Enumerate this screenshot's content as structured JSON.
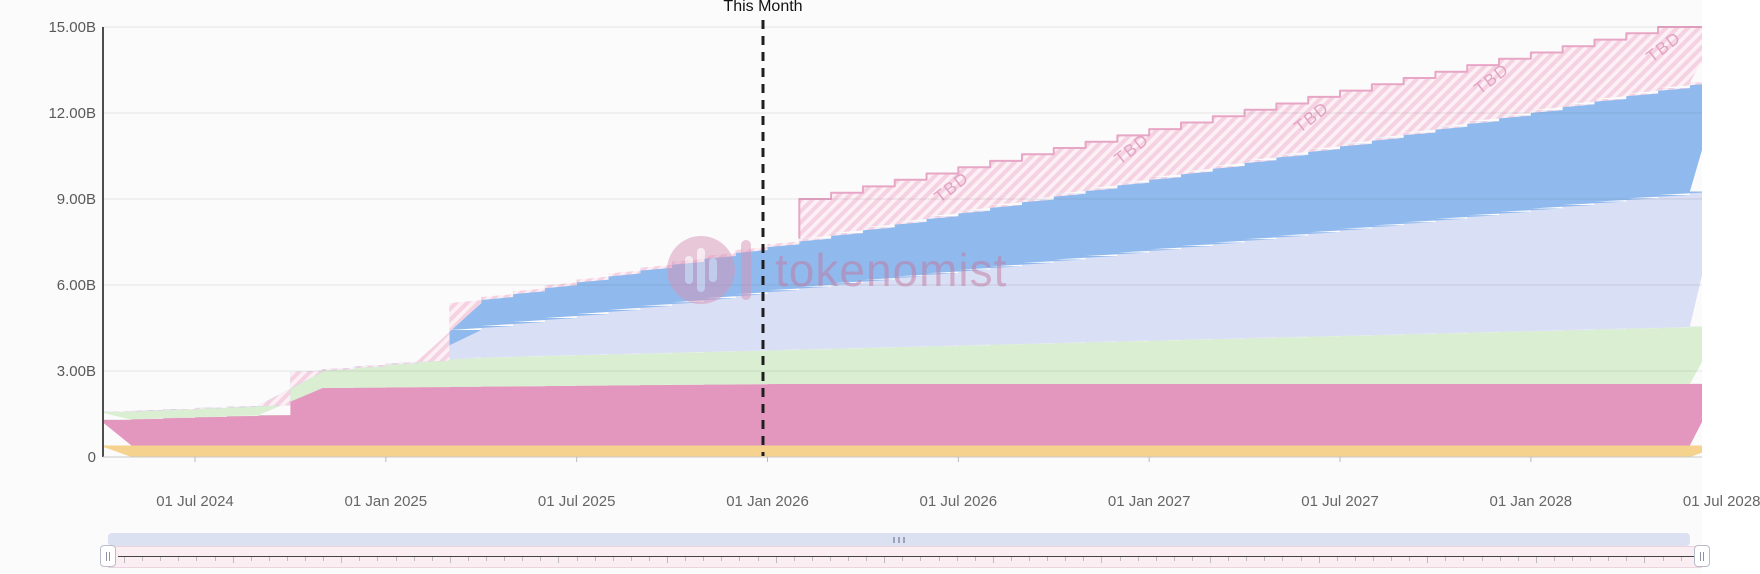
{
  "header": {
    "this_month_label": "This Month"
  },
  "watermark": {
    "text": "tokenomist"
  },
  "colors": {
    "band_orange": "#f5d28e",
    "band_magenta": "#e397be",
    "band_green": "#daefd1",
    "band_lavender": "#d9dff5",
    "band_blue": "#90baee",
    "tbd_fill": "#fdf0f5",
    "tbd_stripe": "#f5d2e2",
    "tbd_stroke": "#e7a6c5",
    "tbd_text": "#e2a3c4",
    "grid_line": "rgba(0,0,0,0.09)",
    "y_axis_line": "#4d4d4d",
    "x_axis_line": "#c9c9c9",
    "tick_mark": "#bbbbbb",
    "dashed_marker": "#1f1f1f",
    "nav_scrollbar": "#dbe1f1",
    "nav_track": "#fbeef3",
    "watermark_pink": "#cf8fb4"
  },
  "chart_data": {
    "type": "area",
    "stacking": "stacked-monthly-steps",
    "unit": "B",
    "ylim": [
      0,
      15
    ],
    "xlim": [
      "2024-04",
      "2028-06"
    ],
    "grid": true,
    "y_ticks": [
      {
        "value": 0,
        "label": "0"
      },
      {
        "value": 3,
        "label": "3.00B"
      },
      {
        "value": 6,
        "label": "6.00B"
      },
      {
        "value": 9,
        "label": "9.00B"
      },
      {
        "value": 12,
        "label": "12.00B"
      },
      {
        "value": 15,
        "label": "15.00B"
      }
    ],
    "x_ticks": [
      "01 Jul 2024",
      "01 Jan 2025",
      "01 Jul 2025",
      "01 Jan 2026",
      "01 Jul 2026",
      "01 Jan 2027",
      "01 Jul 2027",
      "01 Jan 2028",
      "01 Jul 2028"
    ],
    "this_month": {
      "label": "This Month",
      "month": "2026-01"
    },
    "months": [
      "2024-04",
      "2024-05",
      "2024-06",
      "2024-07",
      "2024-08",
      "2024-09",
      "2024-10",
      "2024-11",
      "2024-12",
      "2025-01",
      "2025-02",
      "2025-03",
      "2025-04",
      "2025-05",
      "2025-06",
      "2025-07",
      "2025-08",
      "2025-09",
      "2025-10",
      "2025-11",
      "2025-12",
      "2026-01",
      "2026-02",
      "2026-03",
      "2026-04",
      "2026-05",
      "2026-06",
      "2026-07",
      "2026-08",
      "2026-09",
      "2026-10",
      "2026-11",
      "2026-12",
      "2027-01",
      "2027-02",
      "2027-03",
      "2027-04",
      "2027-05",
      "2027-06",
      "2027-07",
      "2027-08",
      "2027-09",
      "2027-10",
      "2027-11",
      "2027-12",
      "2028-01",
      "2028-02",
      "2028-03",
      "2028-04",
      "2028-05",
      "2028-06"
    ],
    "series": [
      {
        "name": "band-orange",
        "color_key": "band_orange",
        "cumulative_tops": [
          0.4,
          0.4,
          0.4,
          0.4,
          0.4,
          0.4,
          0.4,
          0.4,
          0.4,
          0.4,
          0.4,
          0.4,
          0.4,
          0.4,
          0.4,
          0.4,
          0.4,
          0.4,
          0.4,
          0.4,
          0.4,
          0.4,
          0.4,
          0.4,
          0.4,
          0.4,
          0.4,
          0.4,
          0.4,
          0.4,
          0.4,
          0.4,
          0.4,
          0.4,
          0.4,
          0.4,
          0.4,
          0.4,
          0.4,
          0.4,
          0.4,
          0.4,
          0.4,
          0.4,
          0.4,
          0.4,
          0.4,
          0.4,
          0.4,
          0.4,
          0.4
        ]
      },
      {
        "name": "band-magenta",
        "color_key": "band_magenta",
        "cumulative_tops": [
          1.3,
          1.33,
          1.37,
          1.4,
          1.43,
          1.46,
          2.4,
          2.41,
          2.42,
          2.43,
          2.44,
          2.45,
          2.46,
          2.47,
          2.48,
          2.49,
          2.5,
          2.51,
          2.52,
          2.53,
          2.54,
          2.55,
          2.55,
          2.55,
          2.55,
          2.55,
          2.55,
          2.55,
          2.55,
          2.55,
          2.55,
          2.55,
          2.55,
          2.55,
          2.55,
          2.55,
          2.55,
          2.55,
          2.55,
          2.55,
          2.55,
          2.55,
          2.55,
          2.55,
          2.55,
          2.55,
          2.55,
          2.55,
          2.55,
          2.55,
          2.55
        ]
      },
      {
        "name": "band-green",
        "color_key": "band_green",
        "cumulative_tops": [
          1.57,
          1.62,
          1.66,
          1.71,
          1.75,
          1.8,
          2.96,
          3.06,
          3.16,
          3.26,
          3.36,
          3.45,
          3.48,
          3.51,
          3.54,
          3.56,
          3.59,
          3.62,
          3.65,
          3.68,
          3.7,
          3.73,
          3.76,
          3.79,
          3.82,
          3.84,
          3.87,
          3.9,
          3.93,
          3.96,
          3.98,
          4.01,
          4.04,
          4.07,
          4.1,
          4.12,
          4.15,
          4.18,
          4.21,
          4.24,
          4.26,
          4.29,
          4.32,
          4.35,
          4.38,
          4.4,
          4.43,
          4.46,
          4.49,
          4.52,
          4.55
        ]
      },
      {
        "name": "band-lavender",
        "color_key": "band_lavender",
        "cumulative_tops": [
          0,
          0,
          0,
          0,
          0,
          0,
          0,
          0,
          0,
          0,
          0,
          4.43,
          4.57,
          4.71,
          4.85,
          4.99,
          5.13,
          5.27,
          5.4,
          5.54,
          5.68,
          5.82,
          5.94,
          6.06,
          6.18,
          6.3,
          6.41,
          6.53,
          6.65,
          6.77,
          6.89,
          7.01,
          7.13,
          7.25,
          7.36,
          7.48,
          7.6,
          7.72,
          7.84,
          7.96,
          8.08,
          8.19,
          8.31,
          8.43,
          8.55,
          8.67,
          8.79,
          8.91,
          9.02,
          9.14,
          9.26
        ]
      },
      {
        "name": "band-blue",
        "color_key": "band_blue",
        "cumulative_tops": [
          0,
          0,
          0,
          0,
          0,
          0,
          0,
          0,
          0,
          0,
          0,
          5.37,
          5.58,
          5.78,
          5.99,
          6.19,
          6.4,
          6.6,
          6.81,
          7.01,
          7.22,
          7.42,
          7.62,
          7.81,
          8.01,
          8.2,
          8.4,
          8.59,
          8.79,
          8.98,
          9.18,
          9.37,
          9.57,
          9.76,
          9.96,
          10.15,
          10.35,
          10.54,
          10.74,
          10.93,
          11.13,
          11.32,
          11.52,
          11.71,
          11.91,
          12.1,
          12.3,
          12.49,
          12.68,
          12.87,
          13.06
        ]
      },
      {
        "name": "band-tbd-unallocated",
        "label": "TBD",
        "hatched": true,
        "color_key": "tbd_fill",
        "cumulative_tops": [
          0,
          0,
          0,
          0,
          0,
          0,
          0,
          0,
          0,
          0,
          0,
          0,
          0,
          0,
          0,
          0,
          0,
          0,
          0,
          0,
          0,
          0,
          9.0,
          9.22,
          9.44,
          9.67,
          9.89,
          10.11,
          10.33,
          10.56,
          10.78,
          11.0,
          11.22,
          11.44,
          11.67,
          11.89,
          12.11,
          12.33,
          12.56,
          12.78,
          13.0,
          13.22,
          13.44,
          13.67,
          13.89,
          14.11,
          14.33,
          14.56,
          14.78,
          15.0,
          15.0
        ]
      }
    ],
    "tbd_label_positions_x": [
      940,
      1120,
      1300,
      1480,
      1652
    ]
  }
}
